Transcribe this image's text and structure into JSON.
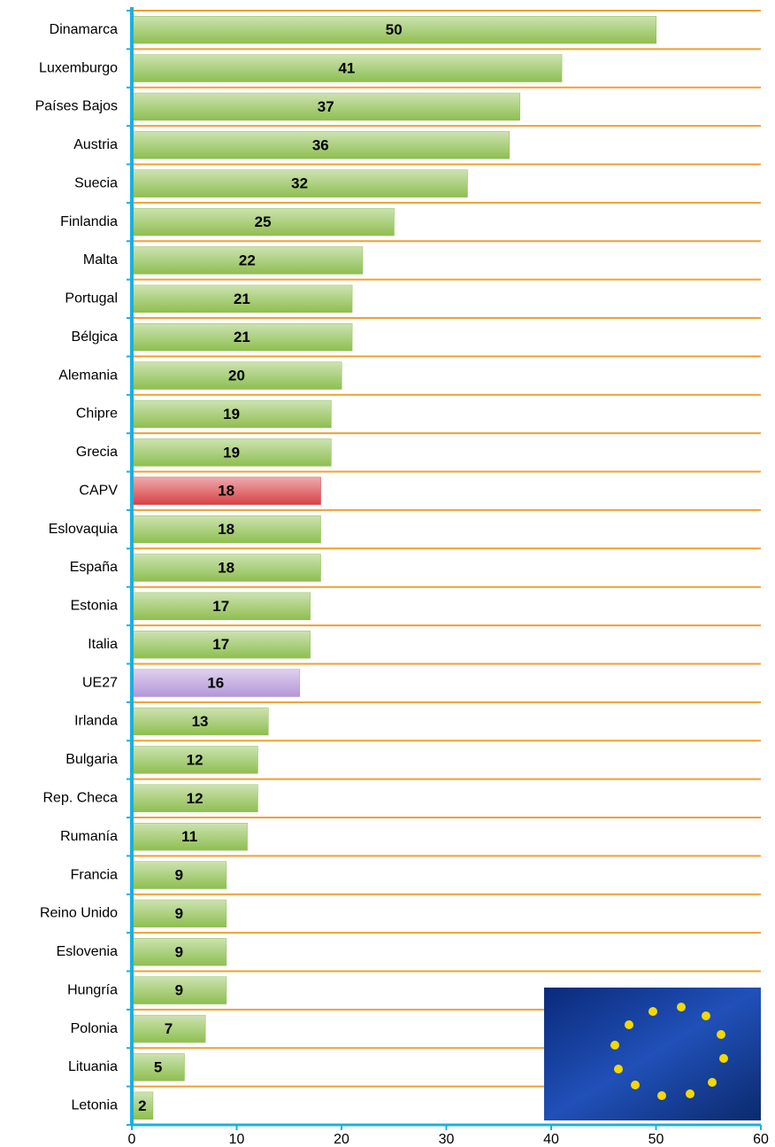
{
  "chart_data": {
    "type": "barh",
    "categories": [
      "Dinamarca",
      "Luxemburgo",
      "Países Bajos",
      "Austria",
      "Suecia",
      "Finlandia",
      "Malta",
      "Portugal",
      "Bélgica",
      "Alemania",
      "Chipre",
      "Grecia",
      "CAPV",
      "Eslovaquia",
      "España",
      "Estonia",
      "Italia",
      "UE27",
      "Irlanda",
      "Bulgaria",
      "Rep. Checa",
      "Rumanía",
      "Francia",
      "Reino Unido",
      "Eslovenia",
      "Hungría",
      "Polonia",
      "Lituania",
      "Letonia"
    ],
    "values": [
      50,
      41,
      37,
      36,
      32,
      25,
      22,
      21,
      21,
      20,
      19,
      19,
      18,
      18,
      18,
      17,
      17,
      16,
      13,
      12,
      12,
      11,
      9,
      9,
      9,
      9,
      7,
      5,
      2
    ],
    "colors": [
      "#9fd45a",
      "#9fd45a",
      "#9fd45a",
      "#9fd45a",
      "#9fd45a",
      "#9fd45a",
      "#9fd45a",
      "#9fd45a",
      "#9fd45a",
      "#9fd45a",
      "#9fd45a",
      "#9fd45a",
      "#f0494f",
      "#9fd45a",
      "#9fd45a",
      "#9fd45a",
      "#9fd45a",
      "#c9a8f0",
      "#9fd45a",
      "#9fd45a",
      "#9fd45a",
      "#9fd45a",
      "#9fd45a",
      "#9fd45a",
      "#9fd45a",
      "#9fd45a",
      "#9fd45a",
      "#9fd45a",
      "#9fd45a"
    ],
    "xlim": [
      0,
      60
    ],
    "xticks": [
      0,
      10,
      20,
      30,
      40,
      50,
      60
    ],
    "grid": true
  }
}
